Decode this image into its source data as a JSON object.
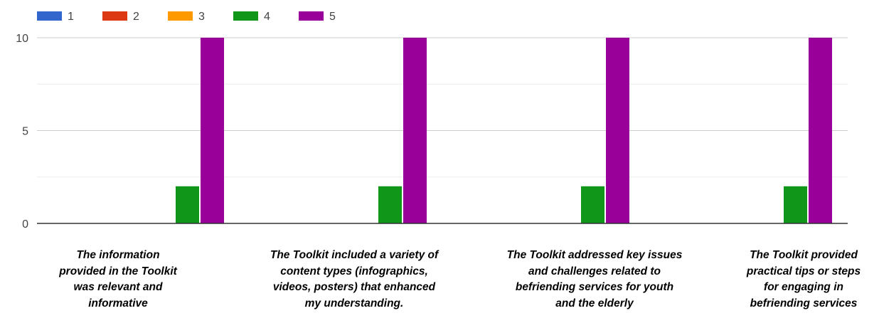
{
  "chart_data": {
    "type": "bar",
    "categories": [
      "The information\nprovided in the Toolkit\nwas relevant and\ninformative",
      "The Toolkit included a variety of\ncontent types (infographics,\nvideos, posters) that enhanced\nmy understanding.",
      "The Toolkit addressed key issues\nand challenges related to\nbefriending services for youth\nand the elderly",
      "The Toolkit provided\npractical tips or steps\nfor engaging in\nbefriending  services"
    ],
    "series": [
      {
        "name": "1",
        "color": "#3366cc",
        "values": [
          0,
          0,
          0,
          0
        ]
      },
      {
        "name": "2",
        "color": "#dc3912",
        "values": [
          0,
          0,
          0,
          0
        ]
      },
      {
        "name": "3",
        "color": "#ff9900",
        "values": [
          0,
          0,
          0,
          0
        ]
      },
      {
        "name": "4",
        "color": "#109618",
        "values": [
          2,
          2,
          2,
          2
        ]
      },
      {
        "name": "5",
        "color": "#990099",
        "values": [
          10,
          10,
          10,
          10
        ]
      }
    ],
    "yticks": [
      "0",
      "5",
      "10"
    ],
    "ylim": [
      0,
      10
    ],
    "grid": true,
    "legend_position": "top-left",
    "title": "",
    "xlabel": "",
    "ylabel": ""
  }
}
